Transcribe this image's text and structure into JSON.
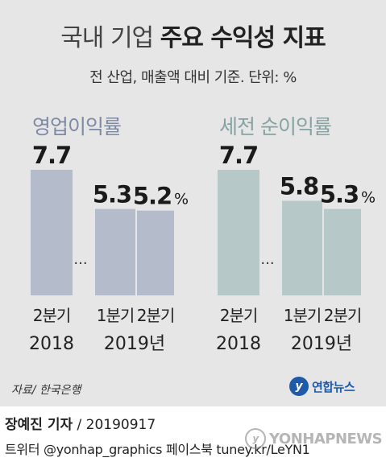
{
  "header": {
    "title_light": "국내 기업",
    "title_bold": "주요 수익성 지표",
    "subtitle": "전 산업, 매출액 대비 기준. 단위: %"
  },
  "colors": {
    "background": "#e6e6e6",
    "bar_operating": "#b4bccb",
    "bar_net": "#b6c8c7",
    "label_operating": "#7e8aa3",
    "label_net": "#86a3a2"
  },
  "chart_data": [
    {
      "type": "bar",
      "title": "영업이익률",
      "categories": [
        "2분기",
        "1분기",
        "2분기"
      ],
      "category_years": [
        "2018",
        "2019년"
      ],
      "values": [
        7.7,
        5.3,
        5.2
      ],
      "value_labels": [
        "7.7",
        "5.3",
        "5.2"
      ],
      "unit_suffix": "%",
      "gap_marker": "...",
      "ylim": [
        0,
        7.7
      ]
    },
    {
      "type": "bar",
      "title": "세전 순이익률",
      "categories": [
        "2분기",
        "1분기",
        "2분기"
      ],
      "category_years": [
        "2018",
        "2019년"
      ],
      "values": [
        7.7,
        5.8,
        5.3
      ],
      "value_labels": [
        "7.7",
        "5.8",
        "5.3"
      ],
      "unit_suffix": "%",
      "gap_marker": "...",
      "ylim": [
        0,
        7.7
      ]
    }
  ],
  "footer": {
    "source": "자료/ 한국은행",
    "logo_mark": "y",
    "logo_text": "연합뉴스",
    "reporter": "장예진 기자",
    "date": " / 20190917",
    "social": "트위터 @yonhap_graphics  페이스북 tuney.kr/LeYN1",
    "watermark_mark": "y",
    "watermark": "YONHAPNEWS"
  }
}
